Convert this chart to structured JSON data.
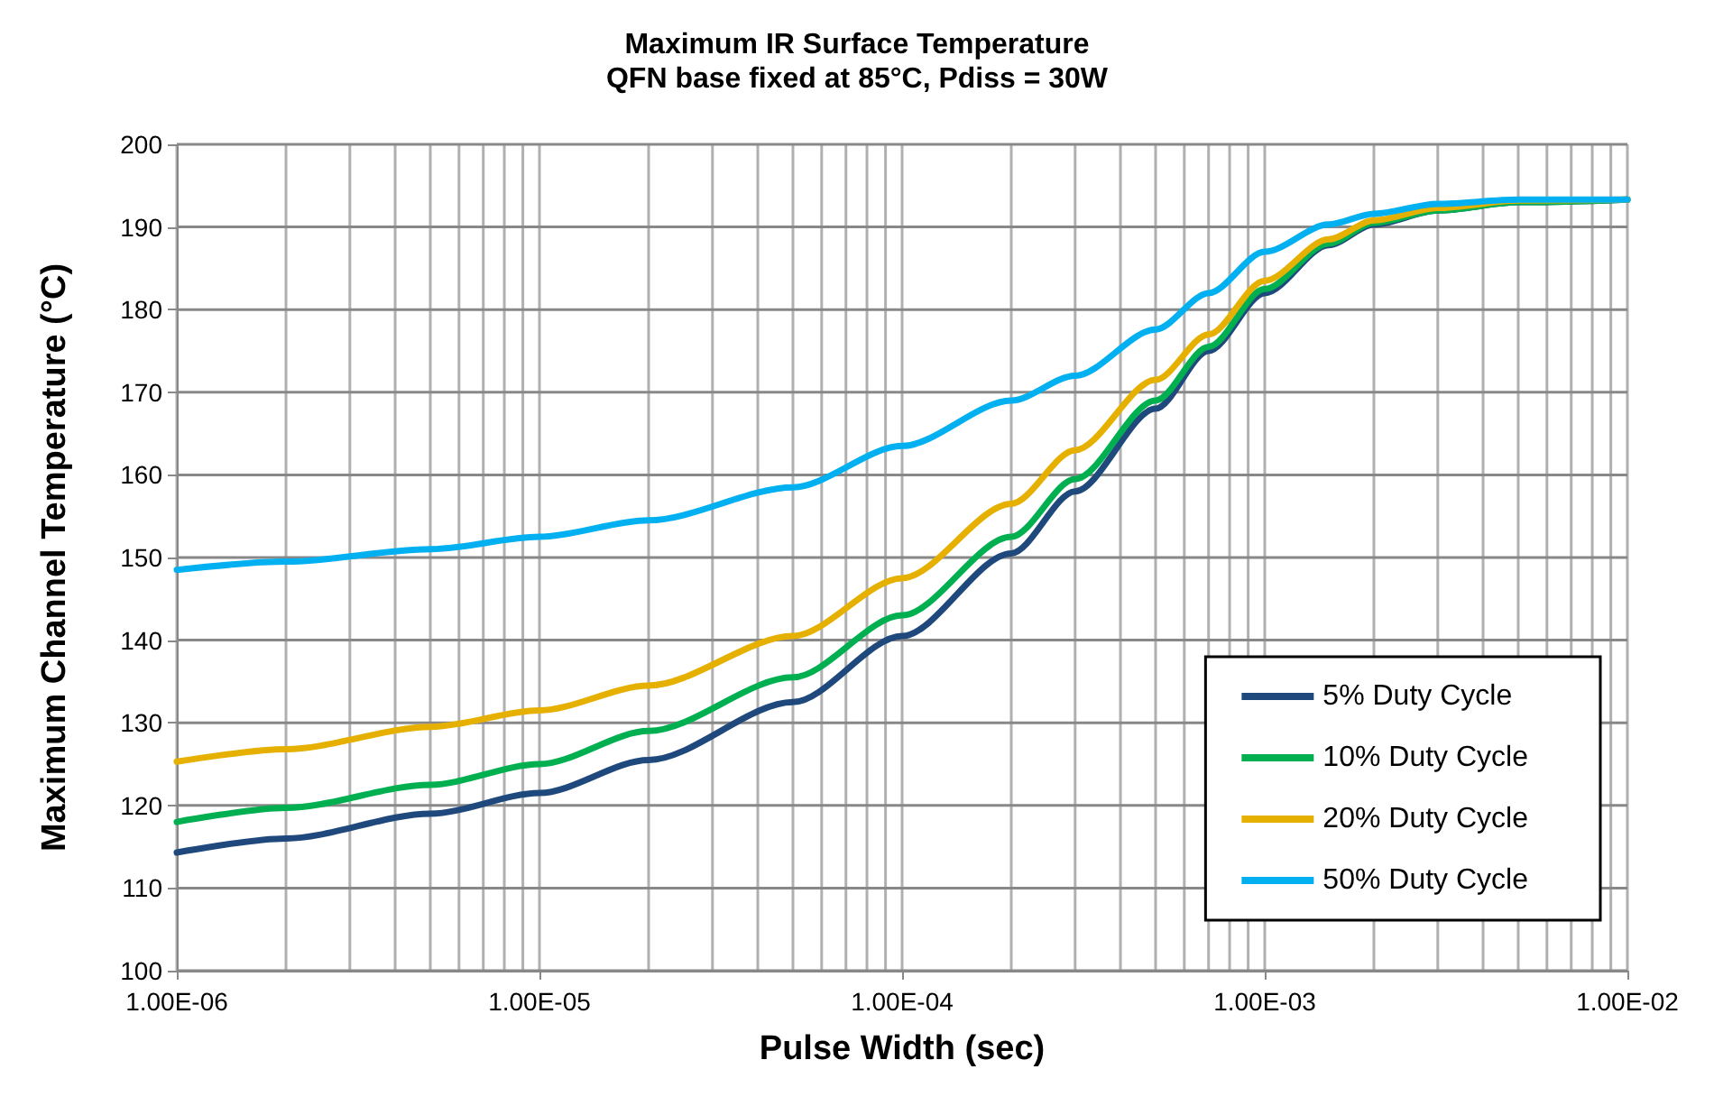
{
  "chart_data": {
    "type": "line",
    "title": "Maximum IR Surface Temperature",
    "subtitle": "QFN base fixed at 85°C, Pdiss = 30W",
    "xlabel": "Pulse Width (sec)",
    "ylabel": "Maximum Channel Temperature (°C)",
    "log": "x",
    "grid": true,
    "legend": "bottom right",
    "marker": "none",
    "line_style": "solid",
    "xlim": [
      1e-06,
      0.01
    ],
    "xticks": [
      {
        "value": 1e-06,
        "label": "1.00E-06"
      },
      {
        "value": 1e-05,
        "label": "1.00E-05"
      },
      {
        "value": 0.0001,
        "label": "1.00E-04"
      },
      {
        "value": 0.001,
        "label": "1.00E-03"
      },
      {
        "value": 0.01,
        "label": "1.00E-02"
      }
    ],
    "ylim": [
      100,
      200
    ],
    "yticks": [
      100,
      110,
      120,
      130,
      140,
      150,
      160,
      170,
      180,
      190,
      200
    ],
    "x": [
      1e-06,
      2e-06,
      5e-06,
      1e-05,
      2e-05,
      5e-05,
      0.0001,
      0.0002,
      0.0003,
      0.0005,
      0.0007,
      0.001,
      0.0015,
      0.002,
      0.003,
      0.005,
      0.01
    ],
    "series": [
      {
        "name": "5% Duty Cycle",
        "color": "#1f497d",
        "values": [
          114.3,
          116,
          119,
          121.5,
          125.5,
          132.5,
          140.5,
          150.5,
          158,
          168,
          175,
          182,
          187.8,
          190.3,
          192,
          193,
          193.3
        ]
      },
      {
        "name": "10% Duty Cycle",
        "color": "#00b050",
        "values": [
          118,
          119.7,
          122.5,
          125,
          129,
          135.5,
          143,
          152.5,
          159.5,
          169,
          175.5,
          182.5,
          188,
          190.5,
          192,
          193,
          193.3
        ]
      },
      {
        "name": "20% Duty Cycle",
        "color": "#e6b000",
        "values": [
          125.3,
          126.8,
          129.5,
          131.5,
          134.5,
          140.5,
          147.5,
          156.5,
          163,
          171.5,
          177,
          183.5,
          188.5,
          190.8,
          192.3,
          193.2,
          193.3
        ]
      },
      {
        "name": "50% Duty Cycle",
        "color": "#00b0f0",
        "values": [
          148.5,
          149.5,
          151,
          152.5,
          154.5,
          158.5,
          163.5,
          169,
          172,
          177.6,
          182,
          187,
          190.3,
          191.6,
          192.8,
          193.3,
          193.3
        ]
      }
    ]
  }
}
